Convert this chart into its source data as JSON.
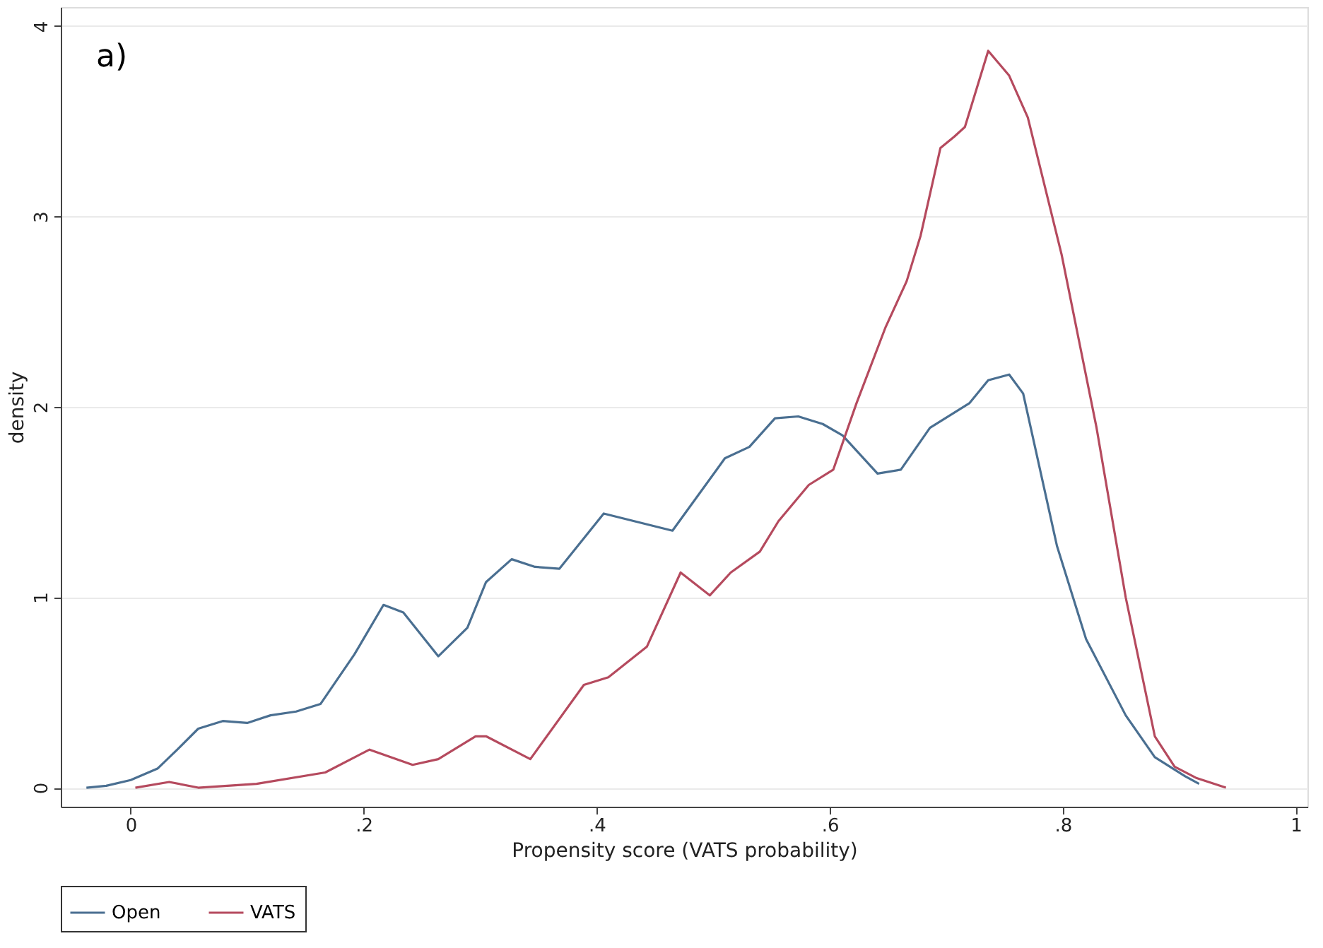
{
  "chart_data": {
    "type": "line",
    "xlabel": "Propensity score (VATS probability)",
    "ylabel": "density",
    "annotations": [
      "a)"
    ],
    "xlim": [
      -0.06,
      1.01
    ],
    "ylim": [
      -0.1,
      4.1
    ],
    "xticks": [
      0,
      {
        "value": 0.2,
        "label": ".2"
      },
      {
        "value": 0.4,
        "label": ".4"
      },
      {
        "value": 0.6,
        "label": ".6"
      },
      {
        "value": 0.8,
        "label": ".8"
      },
      1
    ],
    "yticks": [
      0,
      1,
      2,
      3,
      4
    ],
    "grid": "y",
    "legend": "bottom",
    "marker": "none",
    "line_style": "solid",
    "series": [
      {
        "name": "Open",
        "color": "#4a6f91",
        "x": [
          -0.038,
          -0.021,
          0.0,
          0.023,
          0.04,
          0.058,
          0.079,
          0.1,
          0.12,
          0.142,
          0.163,
          0.192,
          0.217,
          0.234,
          0.264,
          0.289,
          0.305,
          0.327,
          0.347,
          0.368,
          0.406,
          0.465,
          0.51,
          0.531,
          0.553,
          0.573,
          0.594,
          0.611,
          0.641,
          0.661,
          0.686,
          0.72,
          0.736,
          0.754,
          0.766,
          0.795,
          0.82,
          0.854,
          0.879,
          0.905,
          0.917
        ],
        "values": [
          0.0,
          0.01,
          0.04,
          0.1,
          0.2,
          0.31,
          0.35,
          0.34,
          0.38,
          0.4,
          0.44,
          0.7,
          0.96,
          0.92,
          0.69,
          0.84,
          1.08,
          1.2,
          1.16,
          1.15,
          1.44,
          1.35,
          1.73,
          1.79,
          1.94,
          1.95,
          1.91,
          1.85,
          1.65,
          1.67,
          1.89,
          2.02,
          2.14,
          2.17,
          2.07,
          1.27,
          0.78,
          0.38,
          0.16,
          0.06,
          0.02
        ]
      },
      {
        "name": "VATS",
        "color": "#b54a5e",
        "x": [
          0.004,
          0.033,
          0.058,
          0.108,
          0.167,
          0.205,
          0.242,
          0.264,
          0.296,
          0.305,
          0.343,
          0.389,
          0.41,
          0.443,
          0.472,
          0.497,
          0.515,
          0.54,
          0.556,
          0.582,
          0.603,
          0.623,
          0.648,
          0.666,
          0.678,
          0.695,
          0.707,
          0.716,
          0.736,
          0.754,
          0.77,
          0.799,
          0.829,
          0.854,
          0.879,
          0.896,
          0.915,
          0.94
        ],
        "values": [
          0.0,
          0.03,
          0.0,
          0.02,
          0.08,
          0.2,
          0.12,
          0.15,
          0.27,
          0.27,
          0.15,
          0.54,
          0.58,
          0.74,
          1.13,
          1.01,
          1.13,
          1.24,
          1.4,
          1.59,
          1.67,
          2.02,
          2.42,
          2.66,
          2.9,
          3.36,
          3.42,
          3.47,
          3.87,
          3.74,
          3.52,
          2.8,
          1.89,
          1.0,
          0.27,
          0.11,
          0.05,
          0.0
        ]
      }
    ]
  }
}
